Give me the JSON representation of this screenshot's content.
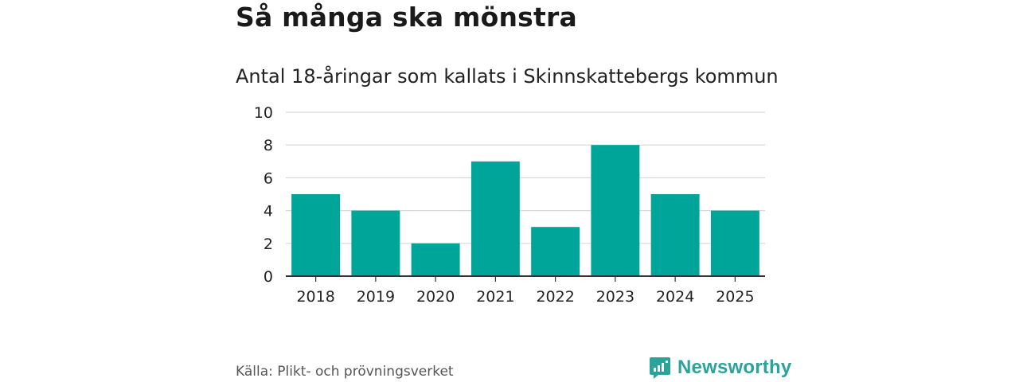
{
  "title": "Så många ska mönstra",
  "subtitle": "Antal 18-åringar som kallats i Skinnskattebergs kommun",
  "source": "Källa: Plikt- och prövningsverket",
  "brand": {
    "name": "Newsworthy",
    "icon": "newsworthy-logo-icon",
    "color": "#2aa39a"
  },
  "chart_data": {
    "type": "bar",
    "title": "Antal 18-åringar som kallats i Skinnskattebergs kommun",
    "xlabel": "",
    "ylabel": "",
    "categories": [
      "2018",
      "2019",
      "2020",
      "2021",
      "2022",
      "2023",
      "2024",
      "2025"
    ],
    "values": [
      5,
      4,
      2,
      7,
      3,
      8,
      5,
      4
    ],
    "ylim": [
      0,
      10
    ],
    "yticks": [
      0,
      2,
      4,
      6,
      8,
      10
    ],
    "grid": true,
    "bar_color": "#00a59a"
  }
}
